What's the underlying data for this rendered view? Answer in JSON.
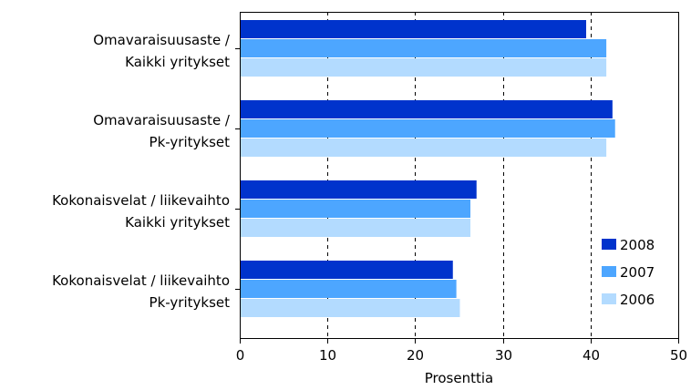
{
  "chart_data": {
    "type": "bar",
    "orientation": "horizontal",
    "categories": [
      [
        "Omavaraisuusaste /",
        "Kaikki yritykset"
      ],
      [
        "Omavaraisuusaste /",
        "Pk-yritykset"
      ],
      [
        "Kokonaisvelat / liikevaihto",
        "Kaikki yritykset"
      ],
      [
        "Kokonaisvelat / liikevaihto",
        "Pk-yritykset"
      ]
    ],
    "series": [
      {
        "name": "2008",
        "color": "#0033cc",
        "values": [
          39.5,
          42.5,
          27.0,
          24.3
        ]
      },
      {
        "name": "2007",
        "color": "#4da6ff",
        "values": [
          41.8,
          42.8,
          26.3,
          24.7
        ]
      },
      {
        "name": "2006",
        "color": "#b3dbff",
        "values": [
          41.8,
          41.8,
          26.3,
          25.1
        ]
      }
    ],
    "xlabel": "Prosenttia",
    "xlim": [
      0,
      50
    ],
    "xticks": [
      0,
      10,
      20,
      30,
      40,
      50
    ],
    "grid": "vertical-dashed",
    "legend": "bottom-right"
  }
}
